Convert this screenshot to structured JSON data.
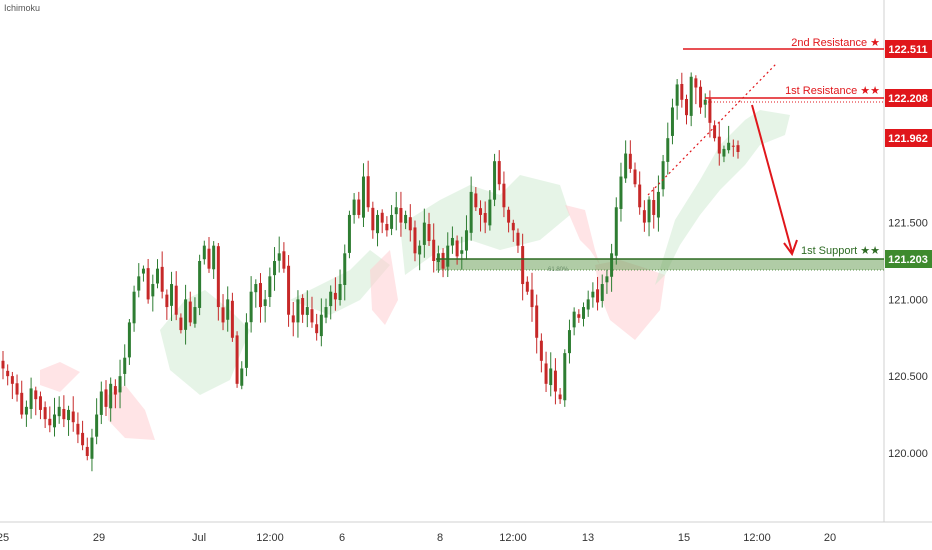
{
  "indicator_label": "Ichimoku",
  "colors": {
    "bull": "#2e7d32",
    "bear": "#c62828",
    "resistance": "#e0161b",
    "support": "#3e8a2e",
    "support_zone": "#6fa35c",
    "cloud_bull": "#c8e6c9",
    "cloud_bear": "#ffcdd2",
    "axis_text": "#333333"
  },
  "chart_data": {
    "type": "candlestick",
    "y_axis": {
      "ylim": [
        119.55,
        122.95
      ],
      "ticks": [
        "120.000",
        "120.500",
        "121.000",
        "121.500"
      ],
      "tick_values": [
        120.0,
        120.5,
        121.0,
        121.5
      ],
      "position": "right"
    },
    "x_axis": {
      "ticks": [
        "25",
        "29",
        "Jul",
        "12:00",
        "6",
        "8",
        "12:00",
        "13",
        "15",
        "12:00",
        "20"
      ]
    },
    "levels": [
      {
        "name": "2nd Resistance ★",
        "value": 122.511,
        "label": "122.511",
        "kind": "resistance"
      },
      {
        "name": "1st Resistance ★★",
        "value": 122.208,
        "label": "122.208",
        "kind": "resistance"
      },
      {
        "name": "",
        "value": 121.962,
        "label": "121.962",
        "kind": "current"
      },
      {
        "name": "1st Support ★★",
        "value": 121.203,
        "label": "121.203",
        "kind": "support"
      }
    ],
    "fib_label": "61.80%",
    "closes": [
      120.55,
      120.5,
      120.45,
      120.38,
      120.25,
      120.3,
      120.42,
      120.35,
      120.28,
      120.22,
      120.18,
      120.25,
      120.3,
      120.22,
      120.28,
      120.2,
      120.12,
      120.05,
      119.98,
      120.1,
      120.25,
      120.4,
      120.3,
      120.45,
      120.38,
      120.5,
      120.62,
      120.85,
      121.05,
      121.15,
      121.2,
      121.0,
      121.1,
      121.2,
      121.05,
      120.95,
      121.1,
      120.9,
      120.8,
      121.0,
      120.85,
      120.95,
      121.25,
      121.35,
      121.2,
      121.35,
      120.95,
      120.85,
      121.0,
      120.75,
      120.45,
      120.55,
      120.85,
      121.05,
      121.1,
      120.95,
      121.0,
      121.15,
      121.25,
      121.3,
      121.2,
      120.9,
      120.85,
      121.0,
      120.9,
      120.95,
      120.85,
      120.78,
      120.9,
      120.95,
      121.05,
      121.0,
      121.1,
      121.3,
      121.55,
      121.65,
      121.55,
      121.8,
      121.6,
      121.45,
      121.55,
      121.5,
      121.45,
      121.55,
      121.6,
      121.5,
      121.55,
      121.45,
      121.3,
      121.35,
      121.5,
      121.38,
      121.25,
      121.3,
      121.2,
      121.35,
      121.4,
      121.28,
      121.32,
      121.45,
      121.7,
      121.6,
      121.55,
      121.5,
      121.65,
      121.9,
      121.75,
      121.6,
      121.5,
      121.45,
      121.35,
      121.1,
      121.05,
      120.95,
      120.75,
      120.6,
      120.45,
      120.55,
      120.4,
      120.35,
      120.65,
      120.8,
      120.92,
      120.88,
      120.95,
      121.0,
      121.05,
      120.98,
      121.1,
      121.15,
      121.3,
      121.6,
      121.8,
      121.95,
      121.85,
      121.75,
      121.6,
      121.5,
      121.65,
      121.55,
      121.7,
      121.9,
      122.05,
      122.25,
      122.4,
      122.3,
      122.2,
      122.45,
      122.38,
      122.25,
      122.3,
      122.15,
      122.05,
      121.95,
      121.98,
      122.02,
      122.0,
      121.96
    ]
  }
}
